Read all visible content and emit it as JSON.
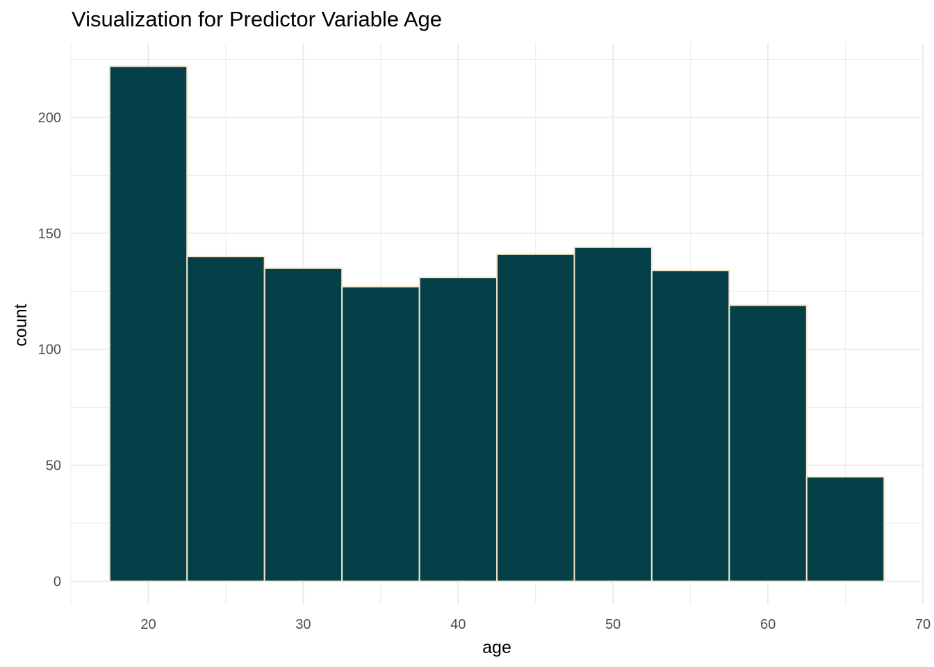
{
  "chart_data": {
    "type": "bar",
    "title": "Visualization for Predictor Variable Age",
    "xlabel": "age",
    "ylabel": "count",
    "bins": [
      {
        "start": 17.5,
        "end": 22.5,
        "count": 222
      },
      {
        "start": 22.5,
        "end": 27.5,
        "count": 140
      },
      {
        "start": 27.5,
        "end": 32.5,
        "count": 135
      },
      {
        "start": 32.5,
        "end": 37.5,
        "count": 127
      },
      {
        "start": 37.5,
        "end": 42.5,
        "count": 131
      },
      {
        "start": 42.5,
        "end": 47.5,
        "count": 141
      },
      {
        "start": 47.5,
        "end": 52.5,
        "count": 144
      },
      {
        "start": 52.5,
        "end": 57.5,
        "count": 134
      },
      {
        "start": 57.5,
        "end": 62.5,
        "count": 119
      },
      {
        "start": 62.5,
        "end": 67.5,
        "count": 45
      }
    ],
    "xlim": [
      15,
      70
    ],
    "ylim": [
      -10,
      232
    ],
    "x_ticks": [
      20,
      30,
      40,
      50,
      60,
      70
    ],
    "y_ticks": [
      0,
      50,
      100,
      150,
      200
    ],
    "grid": true,
    "bar_fill": "#053f48",
    "bar_outline": "#f5e6c8",
    "grid_color": "#ebebeb"
  }
}
